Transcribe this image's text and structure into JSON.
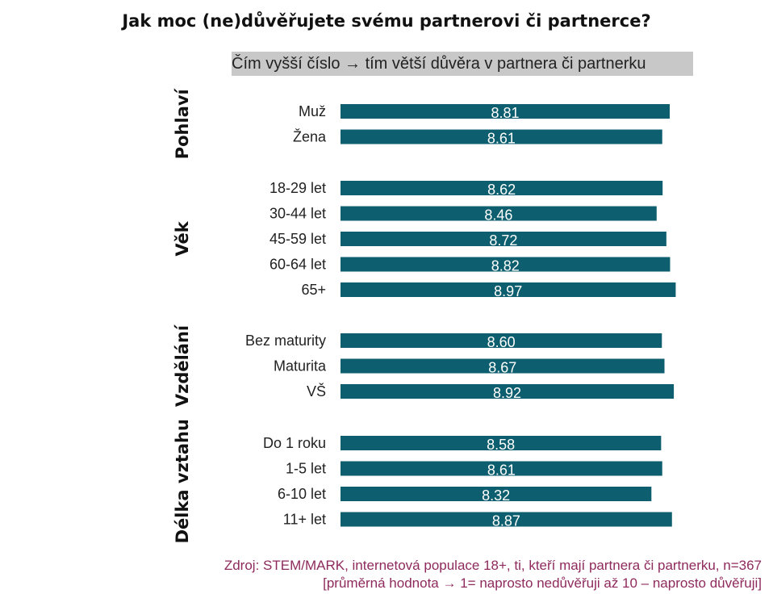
{
  "chart_data": {
    "type": "bar",
    "orientation": "horizontal",
    "title": "Jak moc (ne)důvěřujete svému partnerovi či partnerce?",
    "subtitle": "Čím vyšší číslo → tím větší důvěra v partnera či partnerku",
    "xlim": [
      0,
      10
    ],
    "grid": false,
    "legend": "none",
    "bar_color": "#0d5e6e",
    "label_color": "#ffffff",
    "groups": [
      {
        "name": "Pohlaví",
        "categories": [
          "Muž",
          "Žena"
        ],
        "values": [
          8.81,
          8.61
        ],
        "labels": [
          "8.81",
          "8.61"
        ]
      },
      {
        "name": "Věk",
        "categories": [
          "18-29 let",
          "30-44 let",
          "45-59 let",
          "60-64 let",
          "65+"
        ],
        "values": [
          8.62,
          8.46,
          8.72,
          8.82,
          8.97
        ],
        "labels": [
          "8.62",
          "8.46",
          "8.72",
          "8.82",
          "8.97"
        ]
      },
      {
        "name": "Vzdělání",
        "categories": [
          "Bez maturity",
          "Maturita",
          "VŠ"
        ],
        "values": [
          8.6,
          8.67,
          8.92
        ],
        "labels": [
          "8.60",
          "8.67",
          "8.92"
        ]
      },
      {
        "name": "Délka vztahu",
        "categories": [
          "Do 1 roku",
          "1-5 let",
          "6-10 let",
          "11+ let"
        ],
        "values": [
          8.58,
          8.61,
          8.32,
          8.87
        ],
        "labels": [
          "8.58",
          "8.61",
          "8.32",
          "8.87"
        ]
      }
    ]
  },
  "source": {
    "line1": "Zdroj: STEM/MARK, internetová populace 18+, ti, kteří mají partnera či partnerku, n=367",
    "line2": "[průměrná hodnota → 1= naprosto nedůvěřuji až 10 – naprosto důvěřuji]"
  }
}
